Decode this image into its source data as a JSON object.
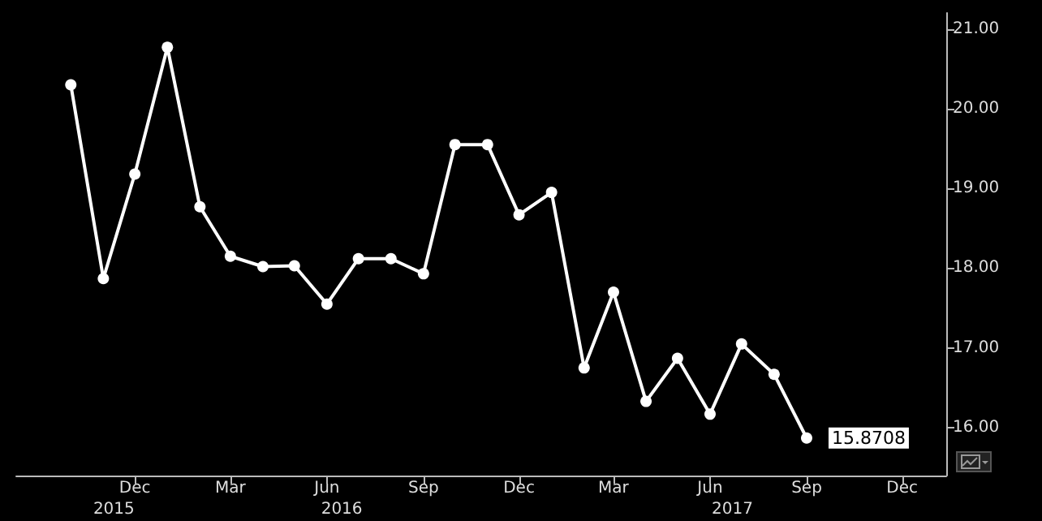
{
  "chart_data": {
    "type": "line",
    "x": [
      "2015-10",
      "2015-11",
      "2015-12",
      "2016-01",
      "2016-02",
      "2016-03",
      "2016-04",
      "2016-05",
      "2016-06",
      "2016-07",
      "2016-08",
      "2016-09",
      "2016-10",
      "2016-11",
      "2016-12",
      "2017-01",
      "2017-02",
      "2017-03",
      "2017-04",
      "2017-05",
      "2017-06",
      "2017-07",
      "2017-08",
      "2017-09"
    ],
    "series": [
      {
        "color": "#ffffff",
        "values": [
          20.3,
          17.87,
          19.18,
          20.77,
          18.77,
          18.15,
          18.02,
          18.03,
          17.55,
          18.12,
          18.12,
          17.93,
          19.55,
          19.55,
          18.67,
          18.95,
          16.75,
          17.7,
          16.33,
          16.87,
          16.17,
          17.05,
          16.67,
          15.8708
        ],
        "value_labels": [
          null,
          null,
          null,
          null,
          null,
          null,
          null,
          null,
          null,
          null,
          null,
          null,
          null,
          null,
          null,
          null,
          null,
          null,
          null,
          null,
          null,
          null,
          null,
          "15.8708"
        ]
      }
    ],
    "xlim": [
      "2015-08-10",
      "2018-01-12"
    ],
    "xticks": [
      {
        "value": "2015-12",
        "label": "Dec"
      },
      {
        "value": "2016-03",
        "label": "Mar"
      },
      {
        "value": "2016-06",
        "label": "Jun"
      },
      {
        "value": "2016-09",
        "label": "Sep"
      },
      {
        "value": "2016-12",
        "label": "Dec"
      },
      {
        "value": "2017-03",
        "label": "Mar"
      },
      {
        "value": "2017-06",
        "label": "Jun"
      },
      {
        "value": "2017-09",
        "label": "Sep"
      },
      {
        "value": "2017-12",
        "label": "Dec"
      }
    ],
    "ylim": [
      15.4,
      21.2
    ],
    "yticks": [
      {
        "value": 16,
        "label": "16.00"
      },
      {
        "value": 17,
        "label": "17.00"
      },
      {
        "value": 18,
        "label": "18.00"
      },
      {
        "value": 19,
        "label": "19.00"
      },
      {
        "value": 20,
        "label": "20.00"
      },
      {
        "value": 21,
        "label": "21.00"
      }
    ],
    "annotations": [
      "2015",
      "2016",
      "2017"
    ],
    "marker": "circle",
    "line_style": "solid",
    "grid": false
  }
}
